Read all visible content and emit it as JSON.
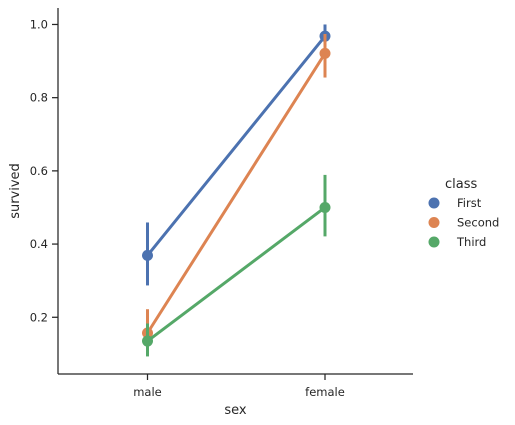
{
  "chart_data": {
    "type": "line",
    "categories": [
      "male",
      "female"
    ],
    "xlabel": "sex",
    "ylabel": "survived",
    "ylim": [
      0.045,
      1.045
    ],
    "yticks": [
      0.2,
      0.4,
      0.6,
      0.8,
      1.0
    ],
    "ytick_labels": [
      "0.2",
      "0.4",
      "0.6",
      "0.8",
      "1.0"
    ],
    "grid": false,
    "legend_title": "class",
    "legend_position": "right",
    "series": [
      {
        "name": "First",
        "color": "#4c72b0",
        "values": [
          0.369,
          0.968
        ],
        "ci_low": [
          0.287,
          0.938
        ],
        "ci_high": [
          0.459,
          1.0
        ]
      },
      {
        "name": "Second",
        "color": "#dd8452",
        "values": [
          0.157,
          0.921
        ],
        "ci_low": [
          0.097,
          0.855
        ],
        "ci_high": [
          0.222,
          0.974
        ]
      },
      {
        "name": "Third",
        "color": "#55a868",
        "values": [
          0.135,
          0.5
        ],
        "ci_low": [
          0.093,
          0.421
        ],
        "ci_high": [
          0.183,
          0.589
        ]
      }
    ]
  }
}
